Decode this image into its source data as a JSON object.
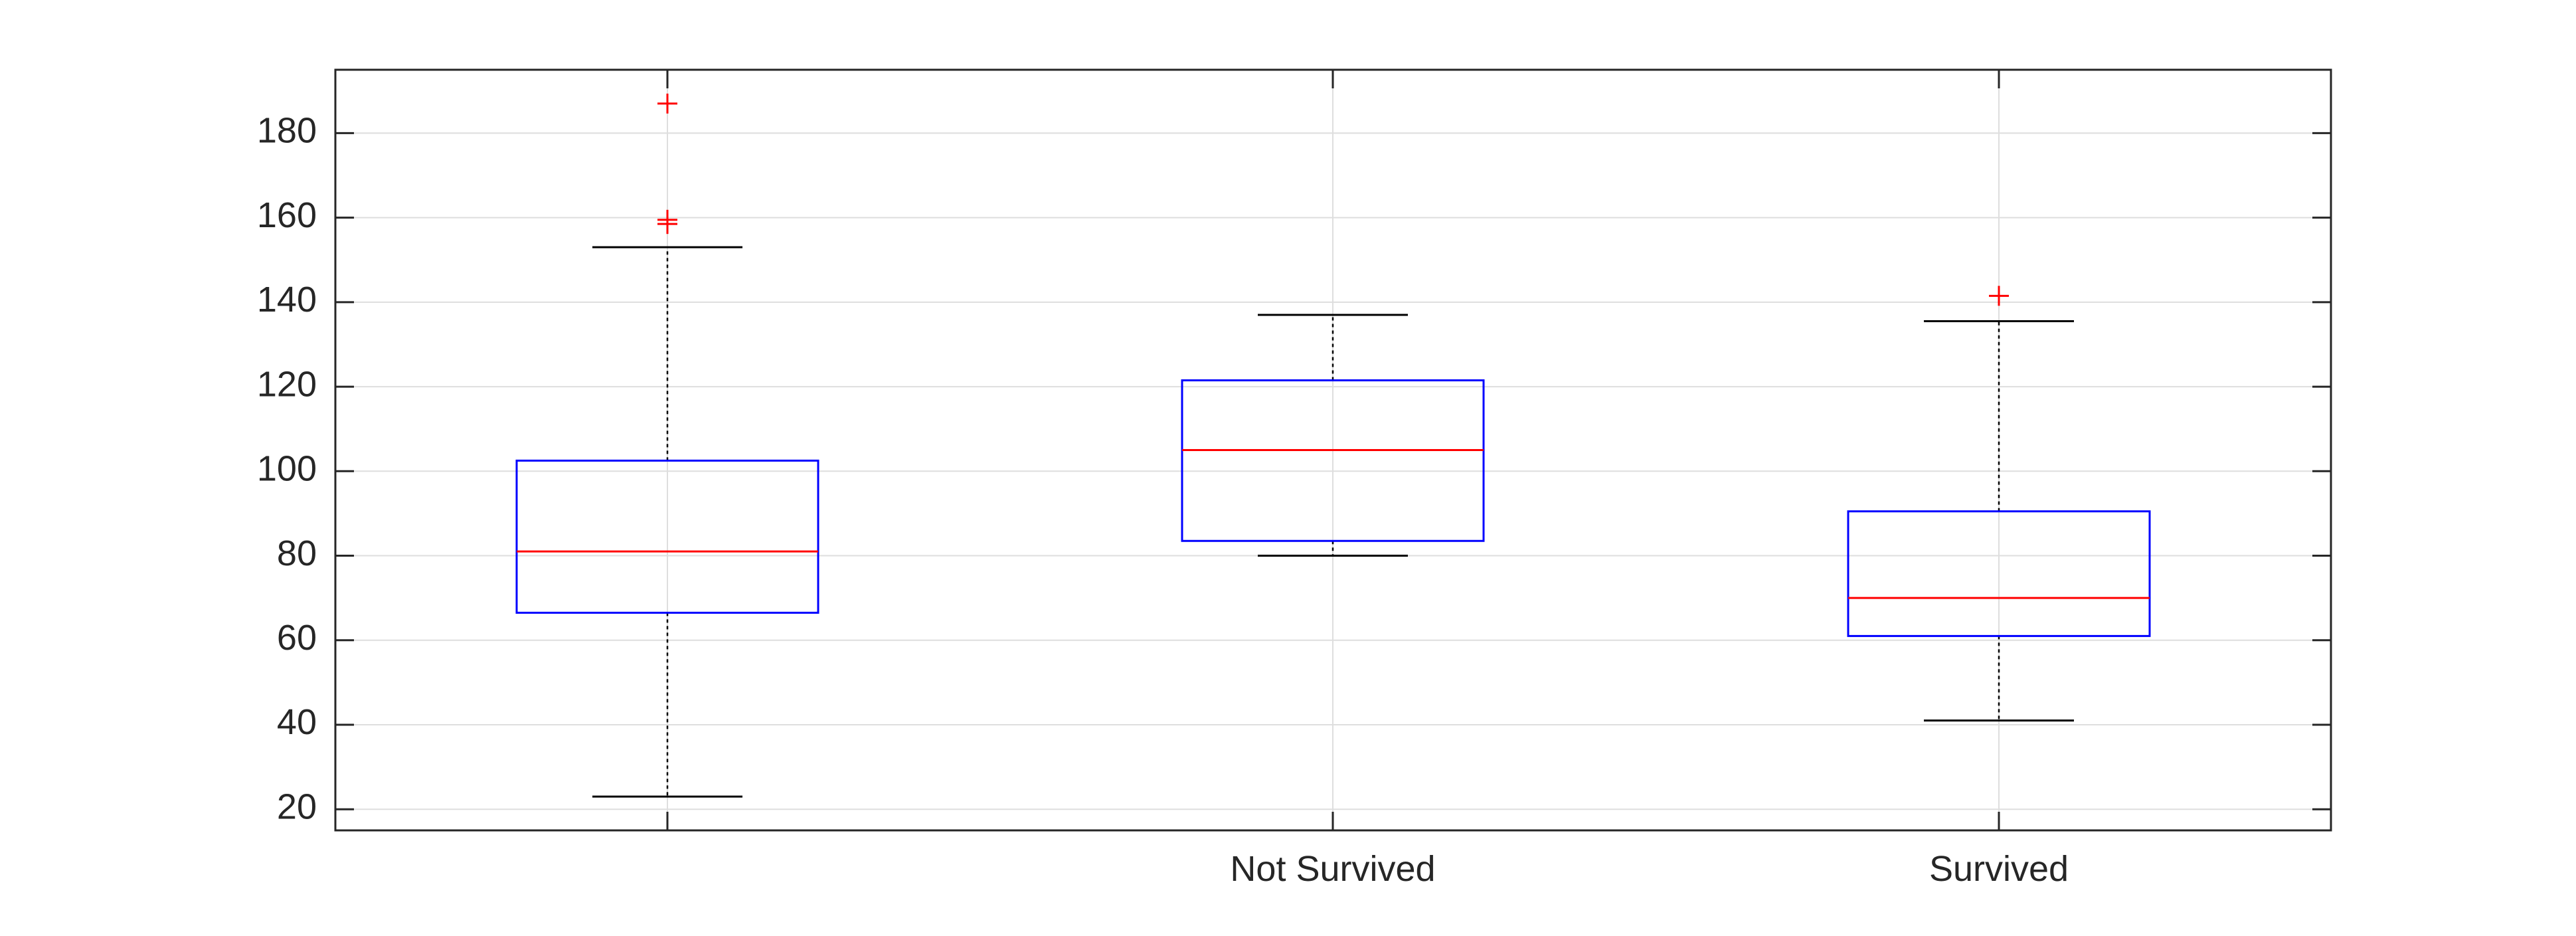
{
  "chart_data": {
    "type": "boxplot",
    "title": "",
    "xlabel": "",
    "ylabel": "",
    "categories": [
      "",
      "Not Survived",
      "Survived"
    ],
    "ylim": [
      15,
      195
    ],
    "yticks": [
      20,
      40,
      60,
      80,
      100,
      120,
      140,
      160,
      180
    ],
    "grid": true,
    "boxes": [
      {
        "category": "",
        "whisker_low": 23,
        "q1": 66.5,
        "median": 81,
        "q3": 102.5,
        "whisker_high": 153,
        "outliers": [
          158.5,
          159.5,
          187
        ]
      },
      {
        "category": "Not Survived",
        "whisker_low": 80,
        "q1": 83.5,
        "median": 105,
        "q3": 121.5,
        "whisker_high": 137,
        "outliers": []
      },
      {
        "category": "Survived",
        "whisker_low": 41,
        "q1": 61,
        "median": 70,
        "q3": 90.5,
        "whisker_high": 135.5,
        "outliers": [
          141.5
        ]
      }
    ],
    "colors": {
      "box": "#0000ff",
      "median": "#ff0000",
      "outlier": "#ff0000",
      "whisker": "#000000",
      "grid": "#dedede",
      "axes": "#262626",
      "text": "#262626"
    }
  }
}
